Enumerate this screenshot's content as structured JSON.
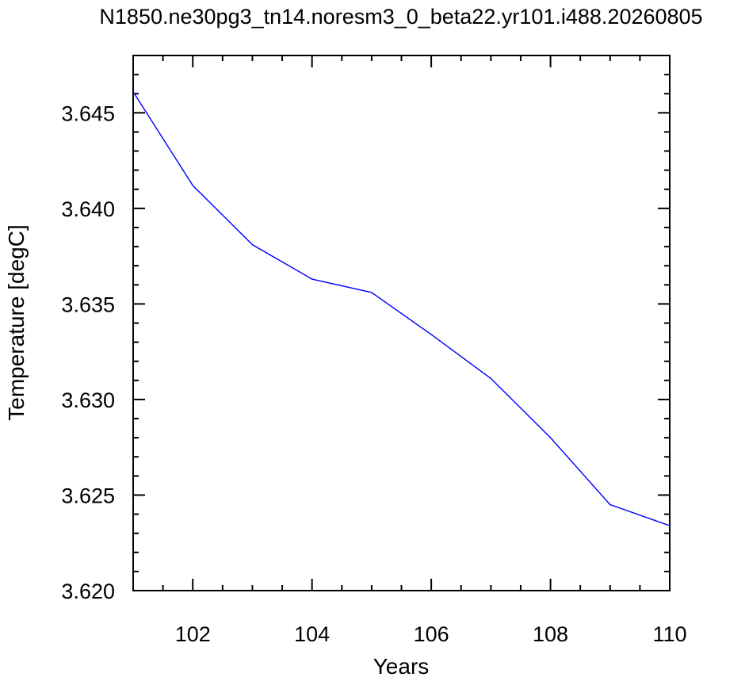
{
  "chart_data": {
    "type": "line",
    "title": "N1850.ne30pg3_tn14.noresm3_0_beta22.yr101.i488.20260805",
    "xlabel": "Years",
    "ylabel": "Temperature [degC]",
    "xlim": [
      101,
      110
    ],
    "ylim": [
      3.62,
      3.648
    ],
    "x_ticks": [
      "102",
      "104",
      "106",
      "108",
      "110"
    ],
    "y_ticks": [
      "3.620",
      "3.625",
      "3.630",
      "3.635",
      "3.640",
      "3.645"
    ],
    "grid": false,
    "series": [
      {
        "color": "#0000ff",
        "x": [
          101,
          102,
          103,
          104,
          105,
          106,
          107,
          108,
          109,
          110
        ],
        "y": [
          3.6461,
          3.6412,
          3.6381,
          3.6363,
          3.6356,
          3.6334,
          3.6311,
          3.628,
          3.6245,
          3.6234
        ]
      }
    ]
  }
}
